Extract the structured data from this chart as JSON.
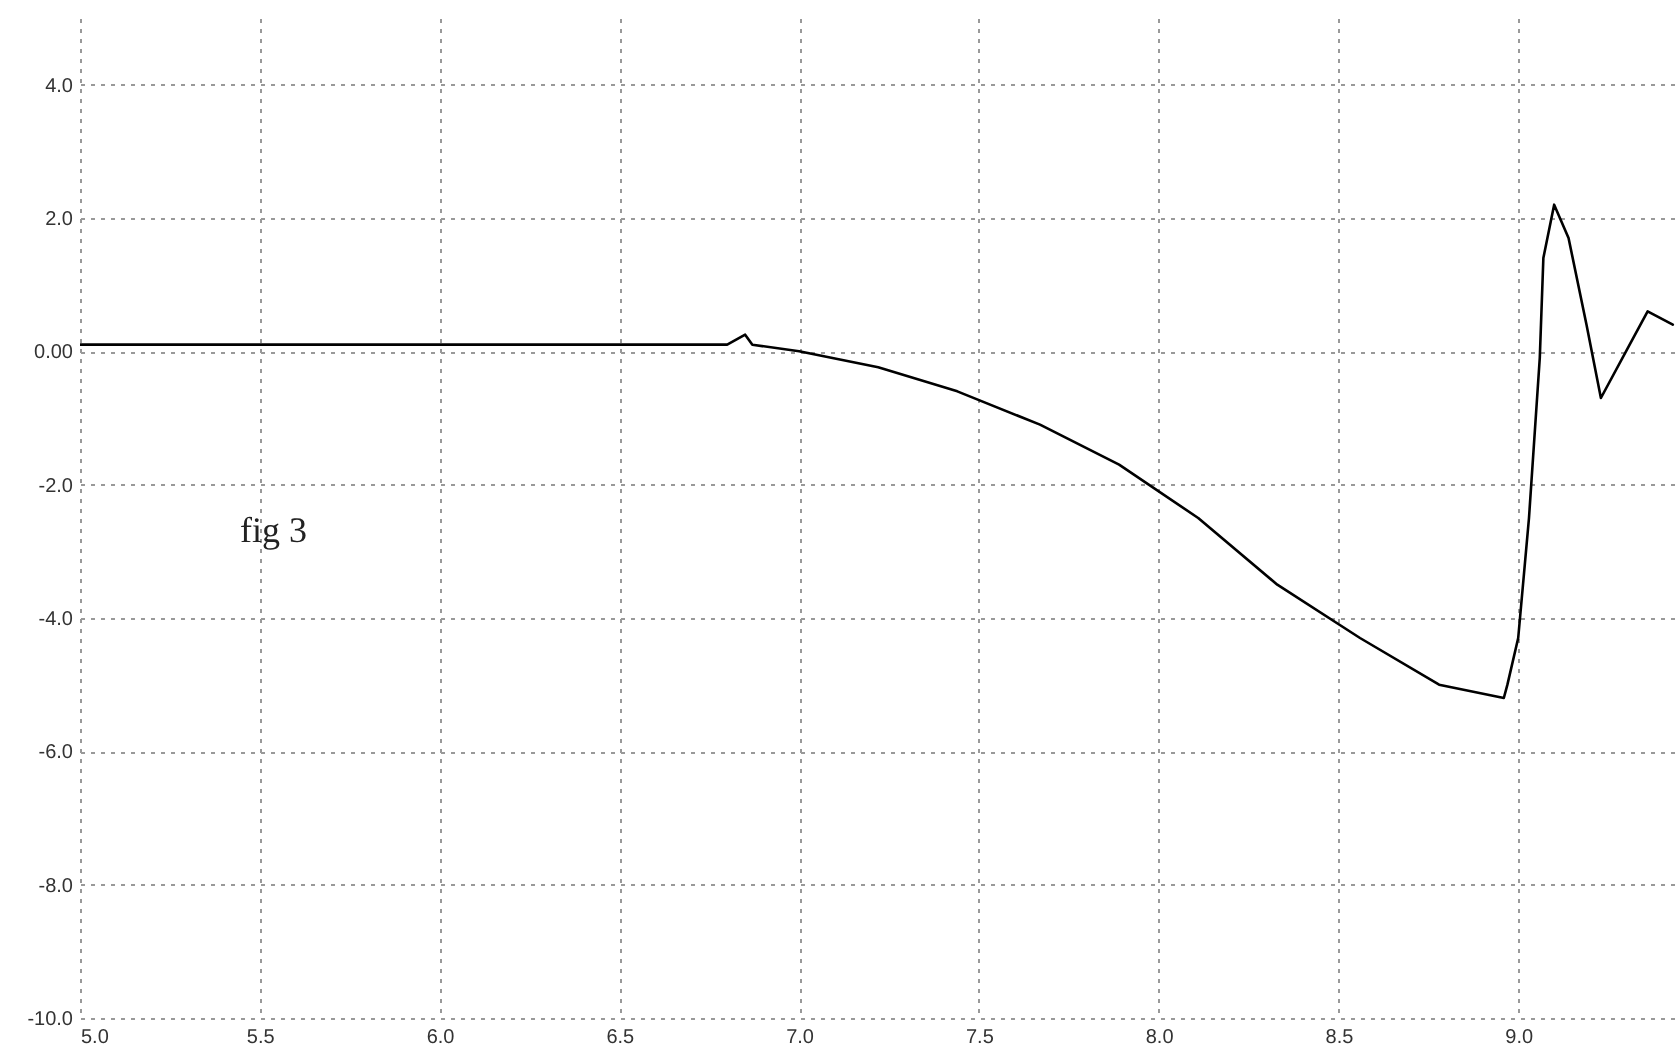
{
  "chart_data": {
    "type": "line",
    "x": [
      5.0,
      5.3,
      5.6,
      5.9,
      6.2,
      6.5,
      6.8,
      6.85,
      6.87,
      7.0,
      7.22,
      7.44,
      7.67,
      7.89,
      8.11,
      8.33,
      8.56,
      8.78,
      8.96,
      8.97,
      9.0,
      9.03,
      9.06,
      9.07,
      9.1,
      9.14,
      9.19,
      9.23,
      9.31,
      9.36,
      9.43
    ],
    "series": [
      {
        "color": "#000000",
        "values": [
          0.1,
          0.1,
          0.1,
          0.1,
          0.1,
          0.1,
          0.1,
          0.25,
          0.1,
          0.0,
          -0.24,
          -0.6,
          -1.1,
          -1.7,
          -2.5,
          -3.5,
          -4.3,
          -5.0,
          -5.2,
          -5.0,
          -4.3,
          -2.5,
          -0.1,
          1.4,
          2.2,
          1.7,
          0.4,
          -0.7,
          0.1,
          0.6,
          0.4
        ]
      }
    ],
    "xlim": [
      5.0,
      9.45
    ],
    "xticks": [
      {
        "value": 5.0,
        "label": "5.0"
      },
      {
        "value": 5.5,
        "label": "5.5"
      },
      {
        "value": 6.0,
        "label": "6.0"
      },
      {
        "value": 6.5,
        "label": "6.5"
      },
      {
        "value": 7.0,
        "label": "7.0"
      },
      {
        "value": 7.5,
        "label": "7.5"
      },
      {
        "value": 8.0,
        "label": "8.0"
      },
      {
        "value": 8.5,
        "label": "8.5"
      },
      {
        "value": 9.0,
        "label": "9.0"
      }
    ],
    "ylim": [
      -10,
      5
    ],
    "yticks": [
      {
        "value": -10,
        "label": "-10.0"
      },
      {
        "value": -8,
        "label": "-8.0"
      },
      {
        "value": -6,
        "label": "-6.0"
      },
      {
        "value": -4,
        "label": "-4.0"
      },
      {
        "value": -2,
        "label": "-2.0"
      },
      {
        "value": 0,
        "label": "0.00"
      },
      {
        "value": 2,
        "label": "2.0"
      },
      {
        "value": 4,
        "label": "4.0"
      }
    ],
    "grid": true,
    "line_style": "solid",
    "annotations": [
      "fig 3"
    ]
  }
}
